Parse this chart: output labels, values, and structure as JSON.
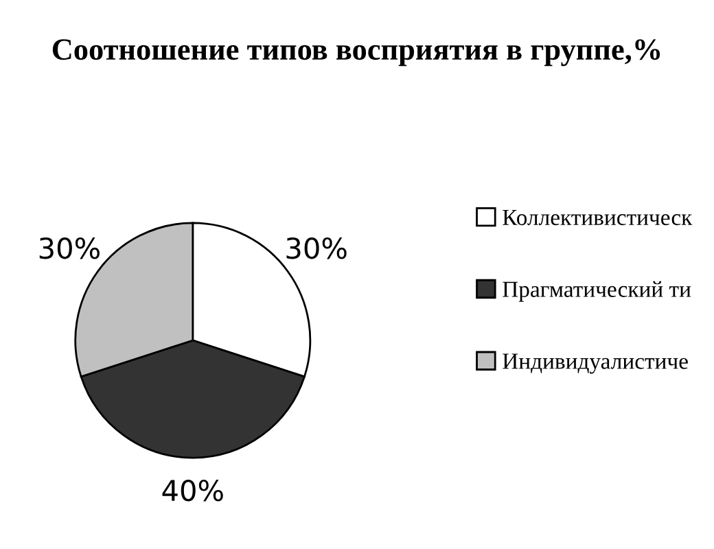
{
  "chart_data": {
    "type": "pie",
    "title": "Соотношение типов восприятия в группе,%",
    "categories": [
      "Коллективистическ",
      "Прагматический ти",
      "Индивидуалистиче"
    ],
    "values": [
      30,
      40,
      30
    ],
    "colors": [
      "#ffffff",
      "#333333",
      "#c0c0c0"
    ],
    "value_labels": [
      "30%",
      "40%",
      "30%"
    ],
    "legend": "right"
  }
}
